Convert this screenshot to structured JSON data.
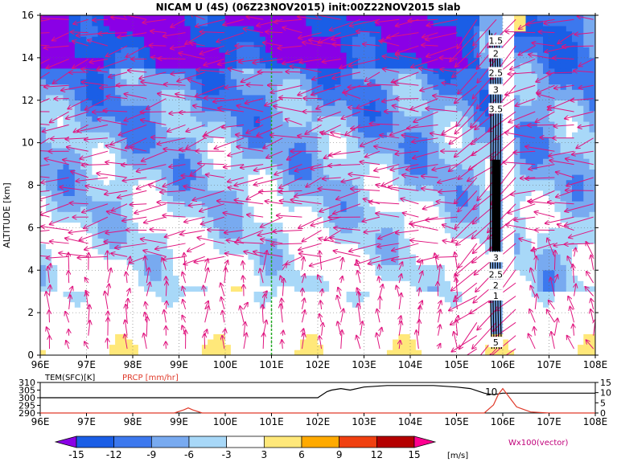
{
  "title": "NICAM U (4S) (06Z23NOV2015) init:00Z22NOV2015 slab",
  "chart_data": [
    {
      "type": "heatmap",
      "name": "upper",
      "title": "NICAM U (4S) (06Z23NOV2015) init:00Z22NOV2015 slab",
      "xlabel": "",
      "ylabel": "ALTITUDE [km]",
      "xlim": [
        96,
        108
      ],
      "ylim": [
        0,
        16
      ],
      "x_ticks": [
        "96E",
        "97E",
        "98E",
        "99E",
        "100E",
        "101E",
        "102E",
        "103E",
        "104E",
        "105E",
        "106E",
        "107E",
        "108E"
      ],
      "y_ticks": [
        "0",
        "2",
        "4",
        "6",
        "8",
        "10",
        "12",
        "14",
        "16"
      ],
      "reference_line_x": 101,
      "reference_line_color": "#22aa22",
      "contour_labels": [
        "1.5",
        "2",
        "2.5",
        "3",
        "3.5",
        "3",
        "2.5",
        "2",
        "1",
        "5"
      ],
      "contour_label_heights_km": [
        14.8,
        14.2,
        13.3,
        12.5,
        11.6,
        4.6,
        3.8,
        3.3,
        2.8,
        0.6
      ],
      "contour_label_x": 105.85,
      "vector_color": "#e0147e",
      "grid": true
    },
    {
      "type": "line",
      "name": "lower",
      "series": [
        {
          "name": "TEM(SFC)[K]",
          "color": "#000000",
          "x": [
            96,
            97,
            98,
            99,
            100,
            101,
            102,
            102.2,
            102.3,
            102.5,
            102.7,
            103,
            103.5,
            104,
            104.5,
            105,
            105.3,
            105.6,
            105.8,
            106,
            107,
            108
          ],
          "y": [
            300,
            300,
            300,
            300,
            300,
            300,
            300,
            304,
            305,
            306,
            305,
            307,
            308,
            308,
            308,
            307,
            306,
            303,
            302,
            303,
            303,
            303
          ]
        },
        {
          "name": "PRCP [mm/hr]",
          "color": "#e03a2a",
          "x": [
            96,
            98.9,
            99.1,
            99.2,
            99.3,
            99.5,
            100,
            105.6,
            105.8,
            105.9,
            106,
            106.1,
            106.3,
            106.6,
            107,
            108
          ],
          "y": [
            0,
            0,
            1.5,
            2.5,
            1.5,
            0,
            0,
            0,
            4,
            9,
            12,
            9,
            3,
            0.5,
            0,
            0
          ]
        }
      ],
      "left_axis_ticks": [
        "290",
        "295",
        "300",
        "305",
        "310"
      ],
      "left_axis_range": [
        290,
        310
      ],
      "right_axis_ticks": [
        "0",
        "5",
        "10",
        "15"
      ],
      "right_axis_range": [
        0,
        15
      ],
      "x_ticks": [
        "96E",
        "97E",
        "98E",
        "99E",
        "100E",
        "101E",
        "102E",
        "103E",
        "104E",
        "105E",
        "106E",
        "107E",
        "108E"
      ],
      "xlim": [
        96,
        108
      ],
      "annotation": "10"
    }
  ],
  "colorbar": {
    "labels": [
      "-15",
      "-12",
      "-9",
      "-6",
      "-3",
      "3",
      "6",
      "9",
      "12",
      "15"
    ],
    "unit": "[m/s]",
    "colors": [
      "#8a00e6",
      "#1a5ee6",
      "#3c78ee",
      "#78aaf0",
      "#a8d8f8",
      "#ffffff",
      "#ffe87a",
      "#ffaa00",
      "#f04010",
      "#b40000",
      "#ff0090"
    ],
    "vector_label": "Wx100(vector)"
  }
}
